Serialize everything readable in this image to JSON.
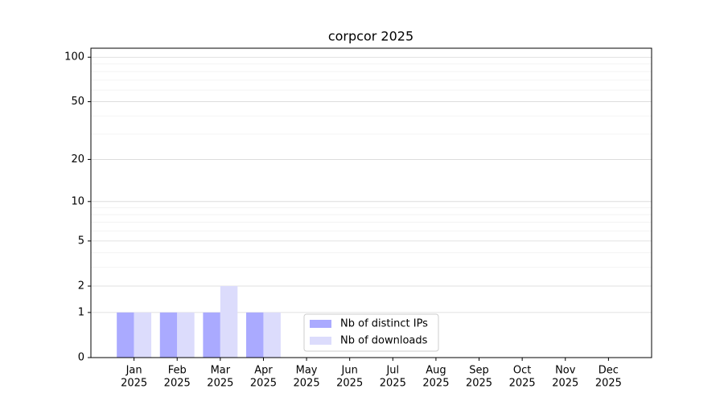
{
  "chart_data": {
    "type": "bar",
    "title": "corpcor 2025",
    "categories": [
      [
        "Jan",
        "2025"
      ],
      [
        "Feb",
        "2025"
      ],
      [
        "Mar",
        "2025"
      ],
      [
        "Apr",
        "2025"
      ],
      [
        "May",
        "2025"
      ],
      [
        "Jun",
        "2025"
      ],
      [
        "Jul",
        "2025"
      ],
      [
        "Aug",
        "2025"
      ],
      [
        "Sep",
        "2025"
      ],
      [
        "Oct",
        "2025"
      ],
      [
        "Nov",
        "2025"
      ],
      [
        "Dec",
        "2025"
      ]
    ],
    "series": [
      {
        "name": "Nb of distinct IPs",
        "color": "#aaaaff",
        "values": [
          1,
          1,
          1,
          1,
          0,
          0,
          0,
          0,
          0,
          0,
          0,
          0
        ]
      },
      {
        "name": "Nb of downloads",
        "color": "#dcdcfc",
        "values": [
          1,
          1,
          2,
          1,
          0,
          0,
          0,
          0,
          0,
          0,
          0,
          0
        ]
      }
    ],
    "yscale": "log1p",
    "ylim": [
      0,
      115
    ],
    "yticks": [
      0,
      1,
      2,
      5,
      10,
      20,
      50,
      100
    ],
    "yminorticks": [
      3,
      4,
      6,
      7,
      8,
      9,
      30,
      40,
      60,
      70,
      80,
      90
    ],
    "grid": true,
    "legend": "lower center"
  }
}
